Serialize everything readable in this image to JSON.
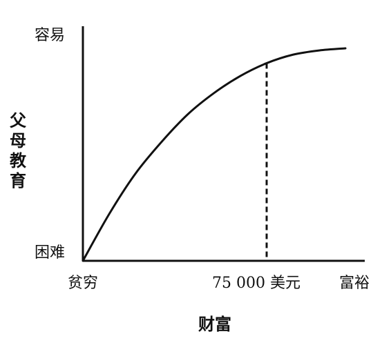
{
  "chart_data": {
    "type": "line",
    "xlabel": "财富",
    "ylabel": "父母教育",
    "x_tick_labels": {
      "left": "贫穷",
      "marker": "75 000 美元",
      "right": "富裕"
    },
    "y_tick_labels": {
      "top": "容易",
      "bottom": "困难"
    },
    "curve": {
      "shape": "concave-saturating",
      "x": [
        0,
        0.1,
        0.2,
        0.3,
        0.4,
        0.5,
        0.6,
        0.7,
        0.8,
        0.9,
        1.0
      ],
      "y": [
        0.0,
        0.22,
        0.41,
        0.56,
        0.69,
        0.79,
        0.87,
        0.93,
        0.97,
        0.99,
        1.0
      ]
    },
    "marker_line": {
      "style": "dashed",
      "x": 0.7
    },
    "colors": {
      "line": "#111111",
      "background": "#ffffff"
    }
  }
}
